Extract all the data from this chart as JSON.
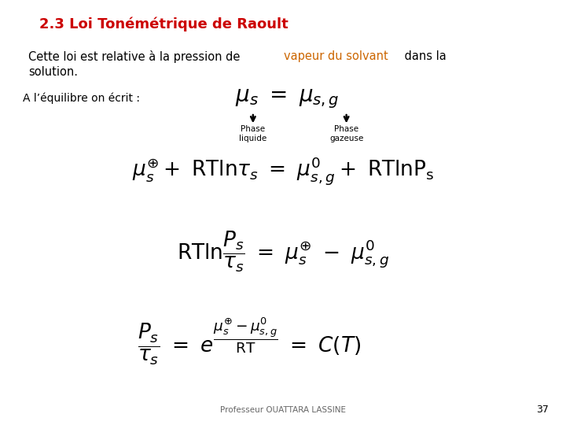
{
  "title": "2.3 Loi Tonémétrique de Raoult",
  "title_color": "#CC0000",
  "title_fontsize": 13,
  "intro_text_black": "Cette loi est relative à la pression de ",
  "intro_text_colored": "vapeur du solvant",
  "intro_text_colored_color": "#CC6600",
  "intro_text_end": " dans la",
  "intro_text_line2": "solution.",
  "label_equilibre": "A l’équilibre on écrit :",
  "arrow_label1": "Phase\nliquide",
  "arrow_label2": "Phase\ngazeuse",
  "footer": "Professeur OUATTARA LASSINE",
  "page_number": "37",
  "bg_color": "#FFFFFF",
  "text_color": "#000000"
}
